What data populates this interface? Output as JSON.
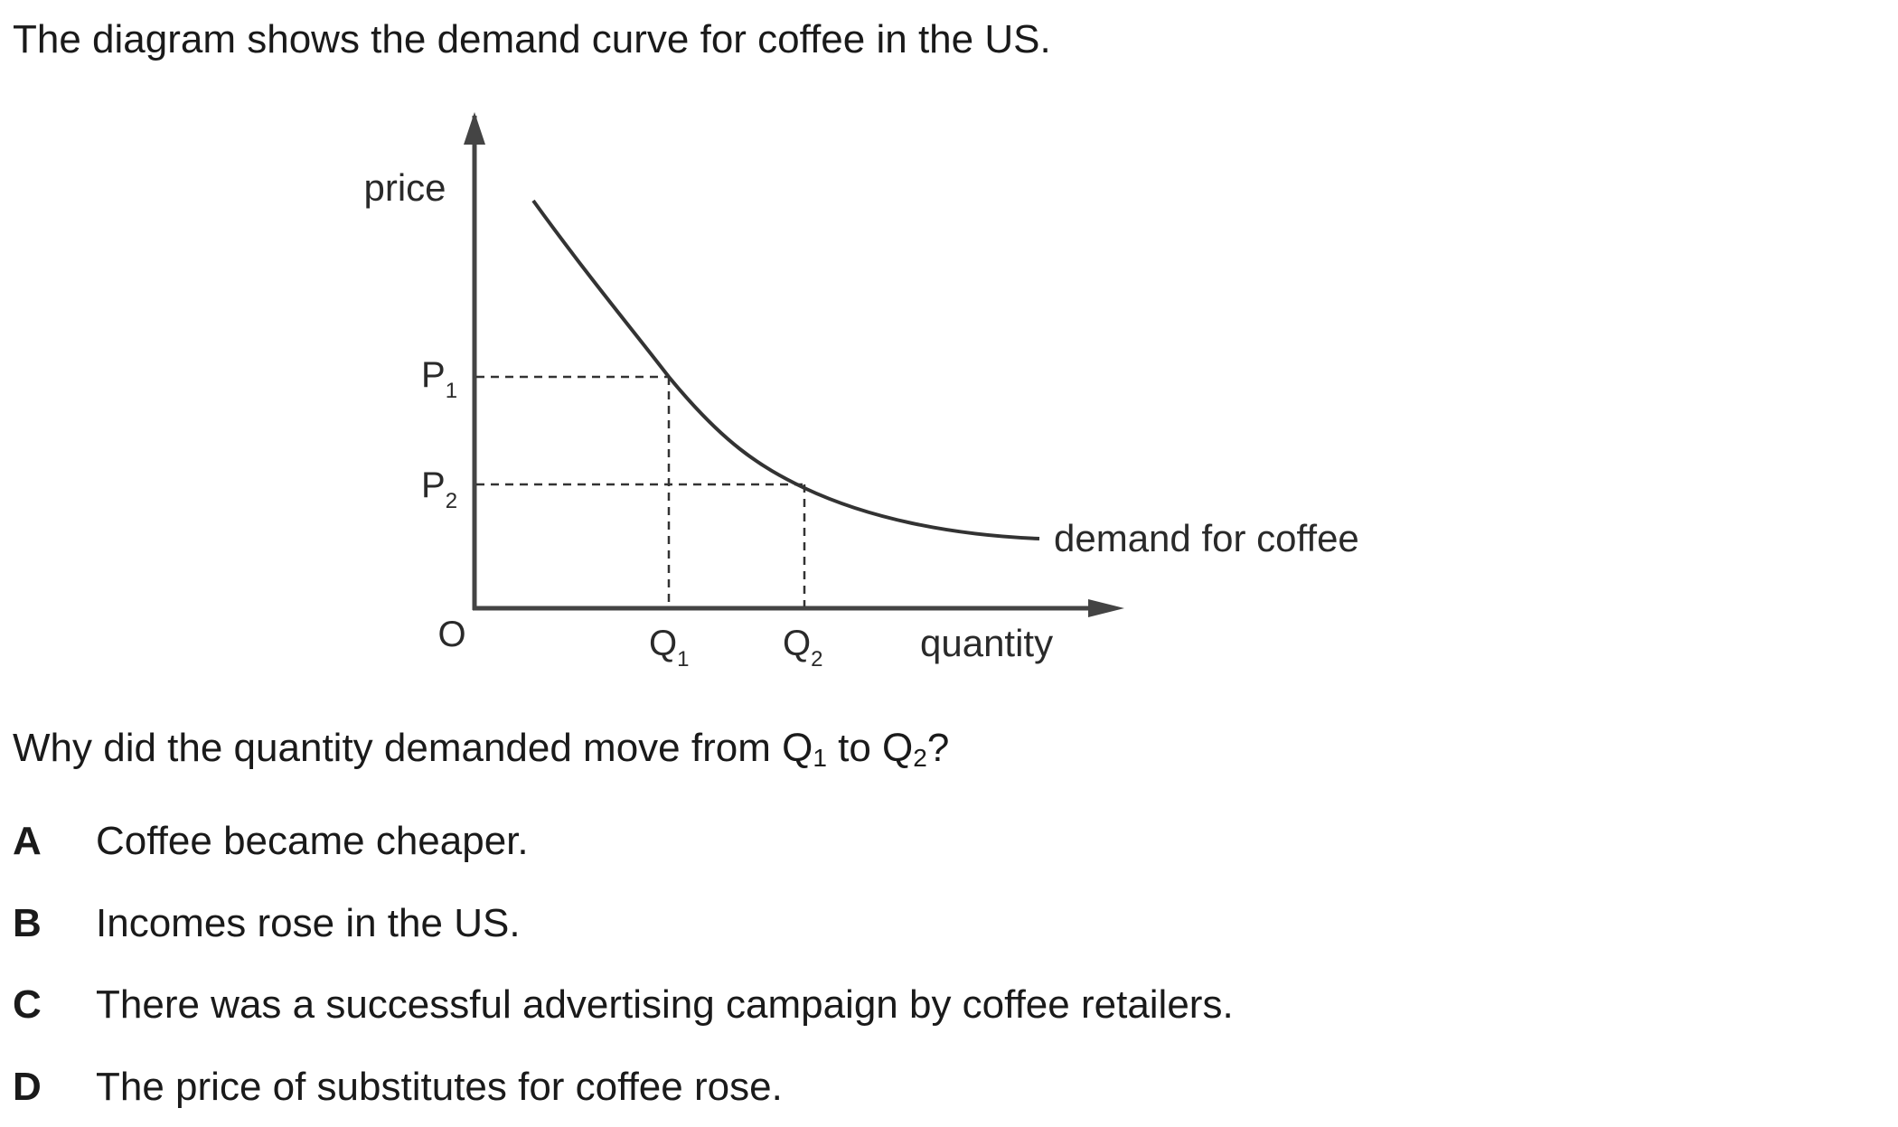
{
  "intro": "The diagram shows the demand curve for coffee in the US.",
  "diagram": {
    "y_axis_label": "price",
    "x_axis_label": "quantity",
    "origin_label": "O",
    "curve_label": "demand for coffee",
    "price_marks": [
      {
        "base": "P",
        "sub": "1"
      },
      {
        "base": "P",
        "sub": "2"
      }
    ],
    "quantity_marks": [
      {
        "base": "Q",
        "sub": "1"
      },
      {
        "base": "Q",
        "sub": "2"
      }
    ]
  },
  "question": {
    "before": "Why did the quantity demanded move from Q",
    "sub1": "1",
    "middle": " to Q",
    "sub2": "2",
    "after": "?"
  },
  "options": [
    {
      "letter": "A",
      "text": "Coffee became cheaper."
    },
    {
      "letter": "B",
      "text": "Incomes rose in the US."
    },
    {
      "letter": "C",
      "text": "There was a successful advertising campaign by coffee retailers."
    },
    {
      "letter": "D",
      "text": "The price of substitutes for coffee rose."
    }
  ]
}
